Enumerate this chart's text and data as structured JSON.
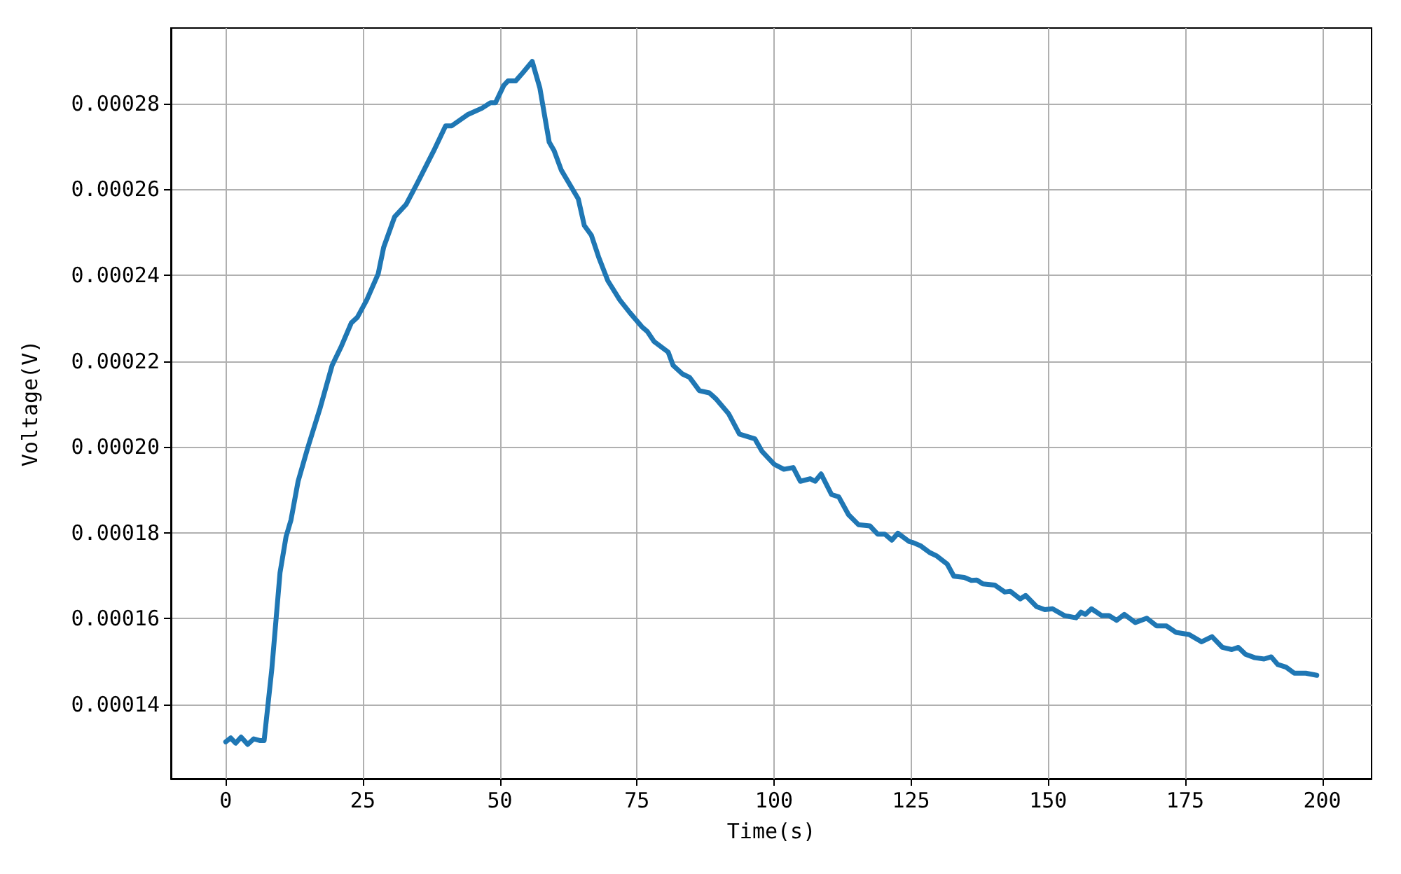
{
  "chart_data": {
    "type": "line",
    "xlabel": "Time(s)",
    "ylabel": "Voltage(V)",
    "xlim": [
      -10,
      209
    ],
    "xticks": [
      0,
      25,
      50,
      75,
      100,
      125,
      150,
      175,
      200
    ],
    "ylim": [
      0.0001227,
      0.0002976
    ],
    "yticks": [
      0.00014,
      0.00016,
      0.00018,
      {
        "value": 0.0002,
        "label": "0.00020"
      },
      0.00022,
      0.00024,
      0.00026,
      0.00028
    ],
    "grid": true,
    "marker": "none",
    "line_style": "solid",
    "series": [
      {
        "color": "#1f77b4",
        "x": [
          0,
          0.9,
          1.8,
          2.8,
          4.0,
          5.1,
          6.2,
          7.0,
          8.4,
          9.9,
          11.0,
          11.9,
          13.2,
          15.0,
          17.2,
          19.4,
          21.1,
          22.9,
          24.0,
          25.7,
          27.8,
          28.8,
          30.8,
          32.9,
          34.8,
          37.9,
          40.1,
          41.2,
          44.1,
          46.7,
          48.3,
          49.2,
          50.7,
          51.5,
          52.9,
          54.2,
          55.9,
          57.3,
          59.0,
          59.9,
          61.2,
          63.0,
          64.3,
          65.4,
          66.7,
          68.0,
          69.7,
          71.9,
          73.7,
          75.9,
          76.9,
          78.1,
          80.7,
          81.6,
          83.3,
          84.6,
          86.4,
          88.2,
          89.5,
          91.7,
          93.7,
          96.5,
          97.8,
          100.0,
          101.8,
          103.5,
          104.8,
          106.6,
          107.5,
          108.6,
          110.5,
          111.8,
          113.6,
          115.4,
          117.5,
          118.9,
          120.2,
          121.5,
          122.6,
          124.6,
          125.4,
          126.7,
          128.4,
          129.7,
          131.6,
          132.8,
          134.7,
          136.0,
          137.0,
          138.1,
          140.3,
          142.1,
          143.1,
          144.9,
          145.9,
          147.9,
          149.4,
          150.8,
          153.0,
          155.1,
          156.0,
          156.8,
          157.9,
          159.8,
          161.1,
          162.5,
          163.9,
          165.9,
          168.0,
          169.8,
          171.6,
          173.3,
          175.7,
          178.0,
          179.9,
          181.8,
          183.5,
          184.7,
          186.0,
          187.7,
          189.4,
          190.7,
          191.9,
          193.4,
          194.9,
          197.0,
          199.0
        ],
        "values": [
          0.0001313,
          0.0001322,
          0.000131,
          0.0001324,
          0.0001307,
          0.000132,
          0.0001316,
          0.0001316,
          0.0001482,
          0.0001707,
          0.0001791,
          0.000183,
          0.000192,
          0.0002,
          0.000209,
          0.000219,
          0.0002235,
          0.0002289,
          0.0002302,
          0.0002342,
          0.0002403,
          0.0002465,
          0.0002536,
          0.0002565,
          0.0002611,
          0.0002689,
          0.0002748,
          0.0002748,
          0.0002774,
          0.0002789,
          0.0002802,
          0.0002802,
          0.0002842,
          0.0002853,
          0.0002853,
          0.0002872,
          0.0002898,
          0.0002836,
          0.000271,
          0.000269,
          0.0002645,
          0.0002606,
          0.0002578,
          0.0002516,
          0.0002493,
          0.0002443,
          0.0002387,
          0.0002342,
          0.0002313,
          0.000228,
          0.0002269,
          0.0002246,
          0.0002221,
          0.000219,
          0.000217,
          0.0002162,
          0.0002131,
          0.0002126,
          0.0002111,
          0.0002078,
          0.000203,
          0.0002019,
          0.000199,
          0.000196,
          0.0001948,
          0.0001952,
          0.000192,
          0.0001926,
          0.000192,
          0.0001937,
          0.0001889,
          0.0001884,
          0.0001842,
          0.0001819,
          0.0001816,
          0.0001797,
          0.0001797,
          0.0001783,
          0.0001799,
          0.000178,
          0.0001777,
          0.000177,
          0.0001754,
          0.0001746,
          0.0001727,
          0.0001699,
          0.0001696,
          0.0001689,
          0.000169,
          0.0001681,
          0.0001678,
          0.0001662,
          0.0001664,
          0.0001646,
          0.0001654,
          0.0001628,
          0.0001621,
          0.0001623,
          0.0001607,
          0.0001602,
          0.0001615,
          0.000161,
          0.0001623,
          0.0001607,
          0.0001607,
          0.0001596,
          0.000161,
          0.0001591,
          0.0001601,
          0.0001583,
          0.0001583,
          0.0001568,
          0.0001563,
          0.0001546,
          0.0001558,
          0.0001533,
          0.0001528,
          0.0001533,
          0.0001517,
          0.0001509,
          0.0001506,
          0.0001511,
          0.0001493,
          0.0001487,
          0.0001473,
          0.0001473,
          0.0001468
        ]
      }
    ]
  }
}
